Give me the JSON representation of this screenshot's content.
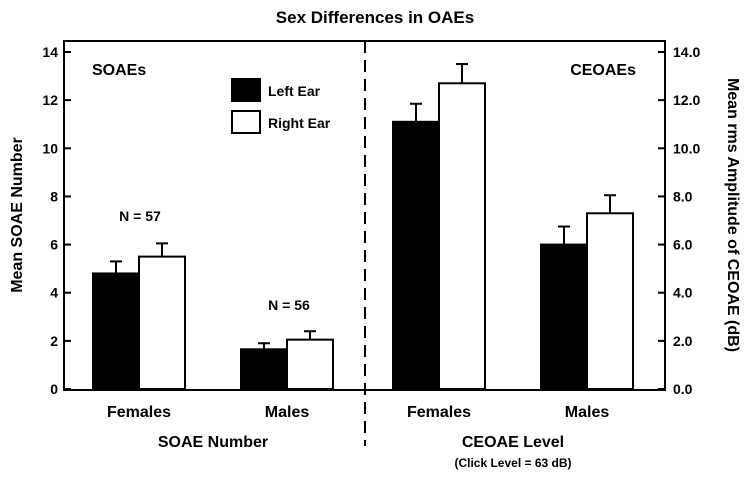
{
  "chart_data": {
    "type": "bar",
    "title": "Sex Differences in OAEs",
    "grid": false,
    "legend_placement": "top-center-left",
    "colors": {
      "left_ear": "#000000",
      "right_ear": "#ffffff",
      "outline": "#000000"
    },
    "legend": [
      {
        "name": "Left Ear",
        "fill": "#000000"
      },
      {
        "name": "Right Ear",
        "fill": "#ffffff"
      }
    ],
    "panels": [
      {
        "panel_label": "SOAEs",
        "axis": "left",
        "ylabel": "Mean SOAE Number",
        "ylim": [
          0,
          14
        ],
        "yticks": [
          "0",
          "2",
          "4",
          "6",
          "8",
          "10",
          "12",
          "14"
        ],
        "xlabel": "SOAE Number",
        "xnote": "",
        "categories": [
          "Females",
          "Males"
        ],
        "series": [
          {
            "name": "Left Ear",
            "values": [
              4.8,
              1.65
            ],
            "errors": [
              0.5,
              0.25
            ]
          },
          {
            "name": "Right Ear",
            "values": [
              5.5,
              2.05
            ],
            "errors": [
              0.55,
              0.35
            ]
          }
        ],
        "annotations": [
          "N = 57",
          "N = 56"
        ]
      },
      {
        "panel_label": "CEOAEs",
        "axis": "right",
        "ylabel": "Mean rms Amplitude of CEOAE (dB)",
        "ylim": [
          0,
          14
        ],
        "yticks": [
          "0.0",
          "2.0",
          "4.0",
          "6.0",
          "8.0",
          "10.0",
          "12.0",
          "14.0"
        ],
        "xlabel": "CEOAE Level",
        "xnote": "(Click Level = 63 dB)",
        "categories": [
          "Females",
          "Males"
        ],
        "series": [
          {
            "name": "Left Ear",
            "values": [
              11.1,
              6.0
            ],
            "errors": [
              0.75,
              0.75
            ]
          },
          {
            "name": "Right Ear",
            "values": [
              12.7,
              7.3
            ],
            "errors": [
              0.8,
              0.75
            ]
          }
        ],
        "annotations": []
      }
    ]
  }
}
